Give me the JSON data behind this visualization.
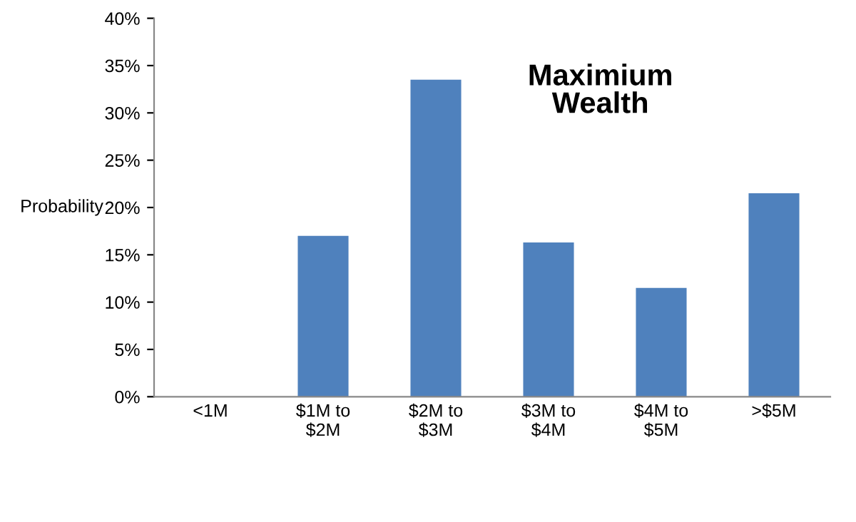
{
  "chart_data": {
    "type": "bar",
    "title": "Maximium\nWealth",
    "ylabel": "Probability",
    "categories": [
      "<1M",
      "$1M to\n$2M",
      "$2M to\n$3M",
      "$3M to\n$4M",
      "$4M to\n$5M",
      ">$5M"
    ],
    "values": [
      0,
      17,
      33.5,
      16.3,
      11.5,
      21.5
    ],
    "color": "#4f81bd",
    "ylim": [
      0,
      40
    ],
    "yticks": [
      {
        "value": 0,
        "label": "0%"
      },
      {
        "value": 5,
        "label": "5%"
      },
      {
        "value": 10,
        "label": "10%"
      },
      {
        "value": 15,
        "label": "15%"
      },
      {
        "value": 20,
        "label": "20%"
      },
      {
        "value": 25,
        "label": "25%"
      },
      {
        "value": 30,
        "label": "30%"
      },
      {
        "value": 35,
        "label": "35%"
      },
      {
        "value": 40,
        "label": "40%"
      }
    ],
    "grid": false
  }
}
